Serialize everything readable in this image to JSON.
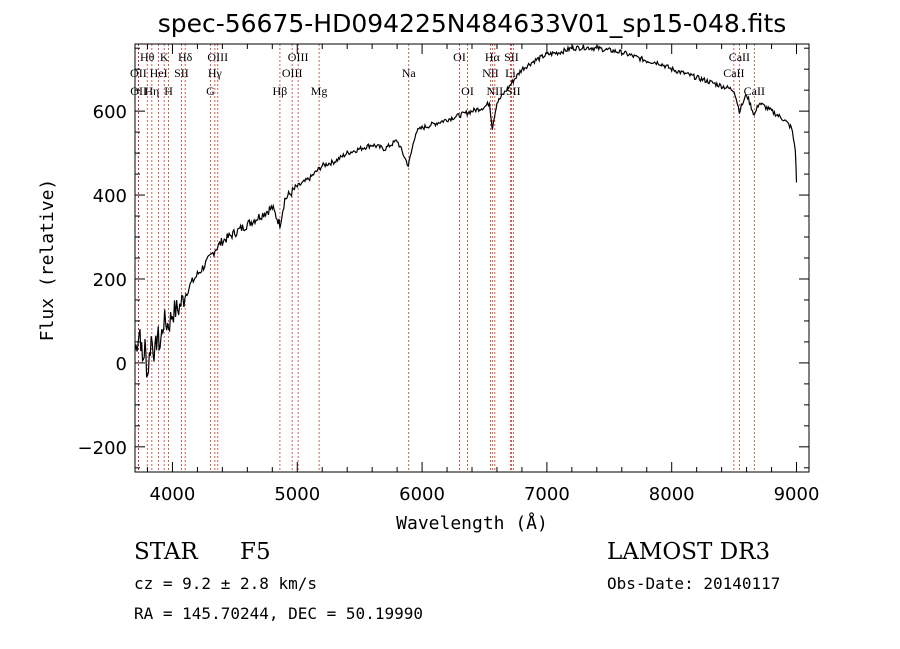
{
  "chart_data": {
    "type": "line",
    "title": "spec-56675-HD094225N484633V01_sp15-048.fits",
    "xlabel": "Wavelength (Å)",
    "ylabel": "Flux (relative)",
    "xlim": [
      3700,
      9100
    ],
    "ylim": [
      -260,
      760
    ],
    "xticks": [
      4000,
      5000,
      6000,
      7000,
      8000,
      9000
    ],
    "yticks": [
      -200,
      0,
      200,
      400,
      600
    ],
    "grid": false,
    "series": [
      {
        "name": "spectrum",
        "x": [
          3700,
          3740,
          3760,
          3780,
          3800,
          3830,
          3860,
          3880,
          3900,
          3930,
          3970,
          4000,
          4050,
          4100,
          4150,
          4200,
          4250,
          4300,
          4340,
          4400,
          4500,
          4600,
          4700,
          4800,
          4861,
          4900,
          5000,
          5100,
          5200,
          5300,
          5400,
          5500,
          5600,
          5700,
          5800,
          5890,
          5950,
          6000,
          6100,
          6200,
          6300,
          6400,
          6500,
          6540,
          6563,
          6580,
          6600,
          6700,
          6800,
          6900,
          7000,
          7100,
          7200,
          7300,
          7400,
          7500,
          7600,
          7700,
          7800,
          7900,
          8000,
          8100,
          8200,
          8300,
          8400,
          8500,
          8542,
          8600,
          8662,
          8700,
          8800,
          8900,
          8960,
          8990,
          9000
        ],
        "y": [
          30,
          80,
          0,
          40,
          -30,
          60,
          20,
          70,
          40,
          100,
          90,
          120,
          130,
          160,
          190,
          210,
          230,
          250,
          270,
          290,
          310,
          330,
          350,
          370,
          330,
          390,
          420,
          440,
          470,
          480,
          500,
          510,
          520,
          510,
          530,
          470,
          550,
          560,
          570,
          580,
          590,
          600,
          610,
          620,
          560,
          590,
          620,
          660,
          700,
          720,
          735,
          740,
          750,
          752,
          750,
          745,
          740,
          730,
          720,
          715,
          700,
          690,
          680,
          670,
          660,
          650,
          600,
          640,
          590,
          620,
          600,
          580,
          560,
          510,
          430
        ]
      }
    ],
    "lines": [
      {
        "label": "Hθ",
        "x": 3798,
        "row": 1
      },
      {
        "label": "Hη",
        "x": 3835,
        "row": 3
      },
      {
        "label": "OII",
        "x": 3727,
        "row": 2
      },
      {
        "label": "OII",
        "x": 3729,
        "row": 3
      },
      {
        "label": "HeI",
        "x": 3889,
        "row": 2
      },
      {
        "label": "K",
        "x": 3934,
        "row": 1
      },
      {
        "label": "H",
        "x": 3969,
        "row": 3
      },
      {
        "label": "SII",
        "x": 4072,
        "row": 2
      },
      {
        "label": "Hδ",
        "x": 4102,
        "row": 1
      },
      {
        "label": "OIII",
        "x": 4363,
        "row": 1
      },
      {
        "label": "Hγ",
        "x": 4340,
        "row": 2
      },
      {
        "label": "G",
        "x": 4305,
        "row": 3
      },
      {
        "label": "Hβ",
        "x": 4861,
        "row": 3
      },
      {
        "label": "OIII",
        "x": 4959,
        "row": 2
      },
      {
        "label": "OIII",
        "x": 5007,
        "row": 1
      },
      {
        "label": "Mg",
        "x": 5175,
        "row": 3
      },
      {
        "label": "Na",
        "x": 5893,
        "row": 2
      },
      {
        "label": "OI",
        "x": 6300,
        "row": 1
      },
      {
        "label": "OI",
        "x": 6364,
        "row": 3
      },
      {
        "label": "NII",
        "x": 6548,
        "row": 2
      },
      {
        "label": "Hα",
        "x": 6563,
        "row": 1
      },
      {
        "label": "NII",
        "x": 6583,
        "row": 3
      },
      {
        "label": "Li",
        "x": 6708,
        "row": 2
      },
      {
        "label": "SII",
        "x": 6716,
        "row": 1
      },
      {
        "label": "SII",
        "x": 6731,
        "row": 3
      },
      {
        "label": "CaII",
        "x": 8498,
        "row": 2
      },
      {
        "label": "CaII",
        "x": 8542,
        "row": 1
      },
      {
        "label": "CaII",
        "x": 8662,
        "row": 3
      }
    ]
  },
  "info": {
    "type_label": "STAR",
    "subclass": "F5",
    "survey": "LAMOST DR3",
    "cz": "cz = 9.2 ± 2.8 km/s",
    "obs_date": "Obs-Date: 20140117",
    "radec": "RA = 145.70244, DEC =  50.19990"
  }
}
